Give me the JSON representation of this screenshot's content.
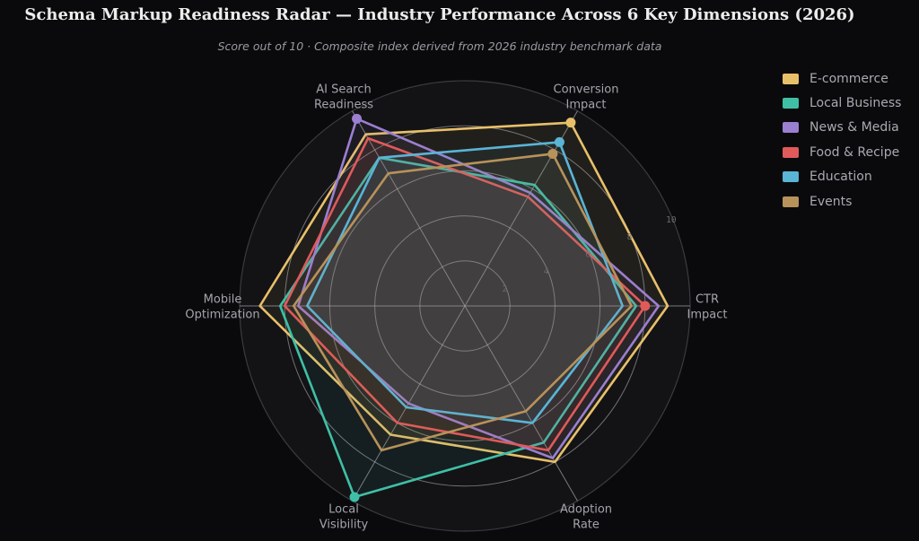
{
  "title": "Schema Markup Readiness Radar — Industry Performance Across 6 Key Dimensions (2026)",
  "subtitle": "Score out of 10  ·  Composite index derived from 2026 industry benchmark data",
  "chart_data": {
    "type": "radar",
    "axes": [
      [
        "CTR",
        "Impact"
      ],
      [
        "Conversion",
        "Impact"
      ],
      [
        "AI Search",
        "Readiness"
      ],
      [
        "Mobile",
        "Optimization"
      ],
      [
        "Local",
        "Visibility"
      ],
      [
        "Adoption",
        "Rate"
      ]
    ],
    "rlim": [
      0,
      10
    ],
    "ticks": [
      2,
      4,
      6,
      8,
      10
    ],
    "tick_labels": [
      "2",
      "4",
      "6",
      "8",
      "10"
    ],
    "legend_position": "right",
    "background": "#0a0a0c",
    "series": [
      {
        "name": "E-commerce",
        "color": "#e8c06a",
        "values": [
          9.0,
          9.4,
          8.8,
          9.1,
          6.6,
          8.0
        ],
        "highlight_axis": 1
      },
      {
        "name": "Local Business",
        "color": "#3fbfa6",
        "values": [
          7.6,
          6.2,
          7.6,
          8.2,
          9.8,
          7.0
        ],
        "highlight_axis": 4
      },
      {
        "name": "News & Media",
        "color": "#9b7fd0",
        "values": [
          8.6,
          5.8,
          9.6,
          7.4,
          5.0,
          7.8
        ],
        "highlight_axis": 2
      },
      {
        "name": "Food & Recipe",
        "color": "#e05a5a",
        "values": [
          8.0,
          5.6,
          8.6,
          8.0,
          6.0,
          7.4
        ],
        "highlight_axis": 0
      },
      {
        "name": "Education",
        "color": "#5ab4d6",
        "values": [
          7.0,
          8.4,
          7.6,
          7.0,
          5.2,
          6.0
        ],
        "highlight_axis": 1
      },
      {
        "name": "Events",
        "color": "#b8925a",
        "values": [
          7.4,
          7.8,
          6.8,
          7.6,
          7.4,
          5.4
        ],
        "highlight_axis": 1
      }
    ]
  }
}
